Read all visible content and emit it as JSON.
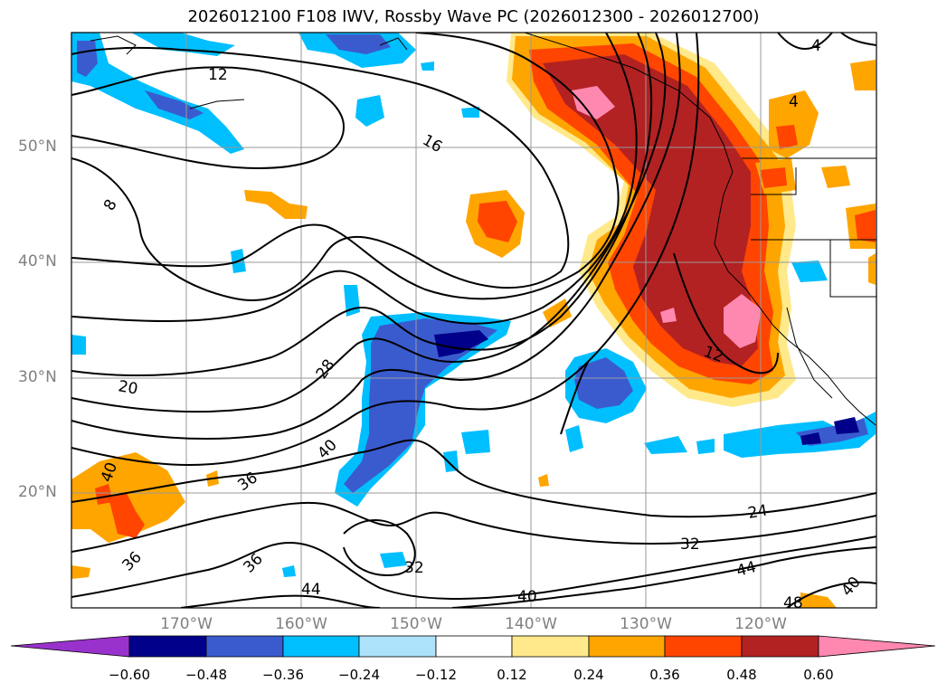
{
  "title": "2026012100 F108 IWV, Rossby Wave PC (2026012300 - 2026012700)",
  "lat_labels": [
    "50°N",
    "40°N",
    "30°N",
    "20°N"
  ],
  "lon_labels": [
    "170°W",
    "160°W",
    "150°W",
    "140°W",
    "130°W",
    "120°W"
  ],
  "contour_labels": [
    "12",
    "16",
    "8",
    "12",
    "28",
    "20",
    "40",
    "40",
    "36",
    "24",
    "32",
    "36",
    "44",
    "32",
    "40",
    "44",
    "48",
    "40",
    "4",
    "4",
    "36"
  ],
  "colorbar": {
    "ticks": [
      "−0.60",
      "−0.48",
      "−0.36",
      "−0.24",
      "−0.12",
      "0.12",
      "0.24",
      "0.36",
      "0.48",
      "0.60"
    ],
    "colors": [
      "#9932CC",
      "#00008B",
      "#3A5BCE",
      "#00BFFF",
      "#ADE3FA",
      "#FFFFFF",
      "#FFE98A",
      "#FFA500",
      "#FF4500",
      "#B22222",
      "#FF88B0"
    ]
  },
  "colors": {
    "land_line": "#000000",
    "grid": "#999999",
    "contour": "#000000"
  }
}
